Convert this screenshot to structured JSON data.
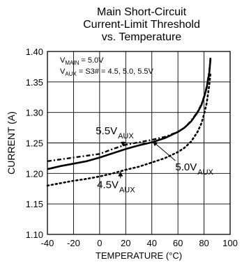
{
  "chart_data": {
    "type": "line",
    "title_lines": [
      "Main Short-Circuit",
      "Current-Limit Threshold",
      "vs. Temperature"
    ],
    "xlabel": "TEMPERATURE (°C)",
    "ylabel": "CURRENT (A)",
    "xlim": [
      -40,
      100
    ],
    "ylim": [
      1.1,
      1.4
    ],
    "x_ticks": [
      -40,
      -20,
      0,
      20,
      40,
      60,
      80,
      100
    ],
    "y_ticks": [
      1.1,
      1.15,
      1.2,
      1.25,
      1.3,
      1.35,
      1.4
    ],
    "x_tick_labels": [
      "-40",
      "-20",
      "0",
      "20",
      "40",
      "60",
      "80",
      "100"
    ],
    "y_tick_labels": [
      "1.10",
      "1.15",
      "1.20",
      "1.25",
      "1.30",
      "1.35",
      "1.40"
    ],
    "grid": true,
    "conditions": {
      "main": {
        "prefix": "V",
        "sub": "MAIN",
        "value": " = 5.0V"
      },
      "aux": {
        "prefix": "V",
        "sub": "AUX",
        "value": " = S3# = 4.5, 5.0, 5.5V"
      }
    },
    "series": [
      {
        "name": "4.5V AUX",
        "style": "dotted",
        "x": [
          -40,
          -30,
          -20,
          -10,
          0,
          10,
          20,
          30,
          40,
          50,
          60,
          65,
          70,
          75,
          78,
          80,
          82,
          84,
          85
        ],
        "y": [
          1.18,
          1.184,
          1.188,
          1.191,
          1.195,
          1.2,
          1.206,
          1.211,
          1.218,
          1.225,
          1.235,
          1.242,
          1.252,
          1.268,
          1.282,
          1.297,
          1.315,
          1.345,
          1.365
        ]
      },
      {
        "name": "5.0V AUX",
        "style": "solid",
        "x": [
          -40,
          -30,
          -20,
          -10,
          0,
          10,
          20,
          30,
          40,
          50,
          60,
          65,
          70,
          75,
          78,
          80,
          82,
          84,
          85
        ],
        "y": [
          1.207,
          1.212,
          1.216,
          1.22,
          1.226,
          1.233,
          1.24,
          1.246,
          1.251,
          1.258,
          1.268,
          1.275,
          1.285,
          1.3,
          1.312,
          1.325,
          1.34,
          1.365,
          1.388
        ]
      },
      {
        "name": "5.5V AUX",
        "style": "dash-dot",
        "x": [
          -40,
          -30,
          -20,
          -10,
          0,
          10,
          20,
          30,
          40,
          50,
          60,
          65,
          70,
          75,
          78,
          80,
          82,
          84,
          85
        ],
        "y": [
          1.22,
          1.223,
          1.226,
          1.229,
          1.232,
          1.24,
          1.247,
          1.251,
          1.255,
          1.26,
          1.268,
          1.275,
          1.286,
          1.301,
          1.313,
          1.326,
          1.342,
          1.368,
          1.392
        ]
      }
    ],
    "labels": [
      {
        "main": "5.5V",
        "sub": "AUX",
        "x": -3,
        "y": 1.264,
        "point": [
          18,
          1.245
        ]
      },
      {
        "main": "5.0V",
        "sub": "AUX",
        "x": 58,
        "y": 1.205,
        "point": [
          41,
          1.252
        ]
      },
      {
        "main": "4.5V",
        "sub": "AUX",
        "x": -2,
        "y": 1.176,
        "point": [
          16,
          1.202
        ]
      }
    ],
    "colors": {
      "line": "#000000",
      "grid": "#000000",
      "background": "#ffffff"
    }
  }
}
